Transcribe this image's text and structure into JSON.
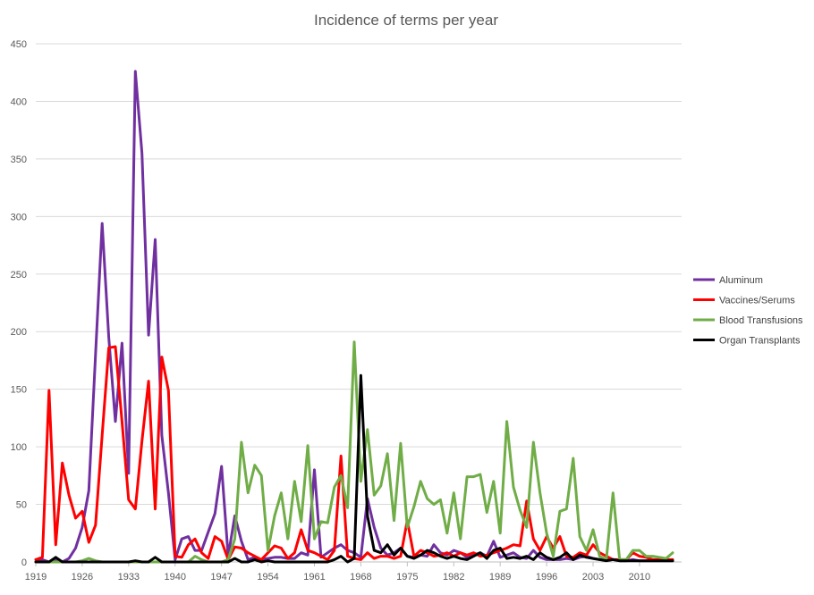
{
  "chart_data": {
    "type": "line",
    "title": "Incidence of terms per year",
    "xlabel": "",
    "ylabel": "",
    "ylim": [
      0,
      450
    ],
    "y_ticks": [
      "0",
      "50",
      "100",
      "150",
      "200",
      "250",
      "300",
      "350",
      "400",
      "450"
    ],
    "x": [
      1919,
      1920,
      1921,
      1922,
      1923,
      1924,
      1925,
      1926,
      1927,
      1928,
      1929,
      1930,
      1931,
      1932,
      1933,
      1934,
      1935,
      1936,
      1937,
      1938,
      1939,
      1940,
      1941,
      1942,
      1943,
      1944,
      1945,
      1946,
      1947,
      1948,
      1949,
      1950,
      1951,
      1952,
      1953,
      1954,
      1955,
      1956,
      1957,
      1958,
      1959,
      1960,
      1961,
      1962,
      1963,
      1964,
      1965,
      1966,
      1967,
      1968,
      1969,
      1970,
      1971,
      1972,
      1973,
      1974,
      1975,
      1976,
      1977,
      1978,
      1979,
      1980,
      1981,
      1982,
      1983,
      1984,
      1985,
      1986,
      1987,
      1988,
      1989,
      1990,
      1991,
      1992,
      1993,
      1994,
      1995,
      1996,
      1997,
      1998,
      1999,
      2000,
      2001,
      2002,
      2003,
      2004,
      2005,
      2006,
      2007,
      2008,
      2009,
      2010,
      2011,
      2012,
      2013,
      2014,
      2015
    ],
    "x_tick_labels": [
      "1919",
      "1926",
      "1933",
      "1940",
      "1947",
      "1954",
      "1961",
      "1968",
      "1975",
      "1982",
      "1989",
      "1996",
      "2003",
      "2010"
    ],
    "legend_position": "right",
    "grid": true,
    "series": [
      {
        "name": "Aluminum",
        "color": "#7030a0",
        "values": [
          2,
          2,
          0,
          2,
          0,
          3,
          12,
          30,
          62,
          180,
          294,
          195,
          122,
          190,
          77,
          426,
          355,
          197,
          280,
          110,
          60,
          2,
          20,
          22,
          10,
          10,
          26,
          42,
          83,
          5,
          40,
          18,
          2,
          4,
          2,
          3,
          4,
          4,
          3,
          3,
          8,
          6,
          80,
          4,
          8,
          12,
          15,
          10,
          8,
          4,
          55,
          30,
          12,
          6,
          8,
          12,
          5,
          4,
          6,
          5,
          15,
          8,
          6,
          10,
          8,
          4,
          6,
          8,
          5,
          18,
          4,
          6,
          8,
          4,
          3,
          10,
          4,
          2,
          2,
          2,
          3,
          2,
          4,
          5,
          3,
          2,
          2,
          2,
          1,
          1,
          2,
          1,
          1,
          1,
          1,
          1,
          1
        ]
      },
      {
        "name": "Vaccines/Serums",
        "color": "#ff0000",
        "values": [
          2,
          4,
          149,
          15,
          86,
          58,
          38,
          44,
          17,
          32,
          110,
          186,
          187,
          122,
          54,
          46,
          105,
          157,
          46,
          178,
          149,
          5,
          4,
          15,
          20,
          8,
          3,
          22,
          18,
          2,
          13,
          12,
          8,
          5,
          2,
          8,
          14,
          12,
          3,
          8,
          28,
          10,
          8,
          5,
          2,
          10,
          92,
          5,
          3,
          2,
          8,
          3,
          5,
          5,
          3,
          5,
          36,
          5,
          10,
          8,
          5,
          6,
          8,
          5,
          8,
          6,
          8,
          5,
          6,
          8,
          10,
          12,
          15,
          14,
          53,
          20,
          10,
          22,
          12,
          22,
          5,
          4,
          8,
          6,
          15,
          8,
          5,
          2,
          2,
          2,
          8,
          5,
          4,
          2,
          2,
          2,
          2
        ]
      },
      {
        "name": "Blood Transfusions",
        "color": "#70ad47",
        "values": [
          0,
          0,
          0,
          0,
          0,
          0,
          0,
          1,
          3,
          1,
          0,
          0,
          0,
          0,
          0,
          0,
          0,
          0,
          0,
          0,
          0,
          0,
          0,
          0,
          5,
          2,
          0,
          0,
          0,
          2,
          20,
          104,
          60,
          84,
          75,
          10,
          40,
          60,
          20,
          70,
          35,
          101,
          20,
          35,
          34,
          65,
          75,
          47,
          191,
          70,
          115,
          58,
          66,
          94,
          36,
          103,
          30,
          48,
          70,
          55,
          50,
          54,
          25,
          60,
          20,
          74,
          74,
          76,
          43,
          70,
          25,
          122,
          65,
          45,
          30,
          104,
          60,
          25,
          5,
          44,
          46,
          90,
          22,
          10,
          28,
          5,
          2,
          60,
          2,
          2,
          10,
          10,
          5,
          5,
          4,
          3,
          8
        ]
      },
      {
        "name": "Organ Transplants",
        "color": "#000000",
        "values": [
          0,
          0,
          0,
          4,
          0,
          0,
          0,
          0,
          0,
          0,
          0,
          0,
          0,
          0,
          0,
          1,
          0,
          0,
          4,
          0,
          0,
          0,
          0,
          0,
          0,
          0,
          0,
          0,
          0,
          0,
          3,
          0,
          0,
          2,
          0,
          1,
          0,
          0,
          0,
          0,
          0,
          0,
          0,
          0,
          0,
          2,
          5,
          0,
          3,
          162,
          40,
          10,
          8,
          15,
          6,
          12,
          5,
          3,
          6,
          10,
          8,
          5,
          3,
          5,
          3,
          2,
          5,
          8,
          3,
          10,
          12,
          3,
          4,
          3,
          5,
          2,
          8,
          4,
          2,
          4,
          8,
          2,
          6,
          4,
          3,
          2,
          1,
          2,
          1,
          1,
          1,
          1,
          1,
          1,
          1,
          1,
          1
        ]
      }
    ]
  }
}
